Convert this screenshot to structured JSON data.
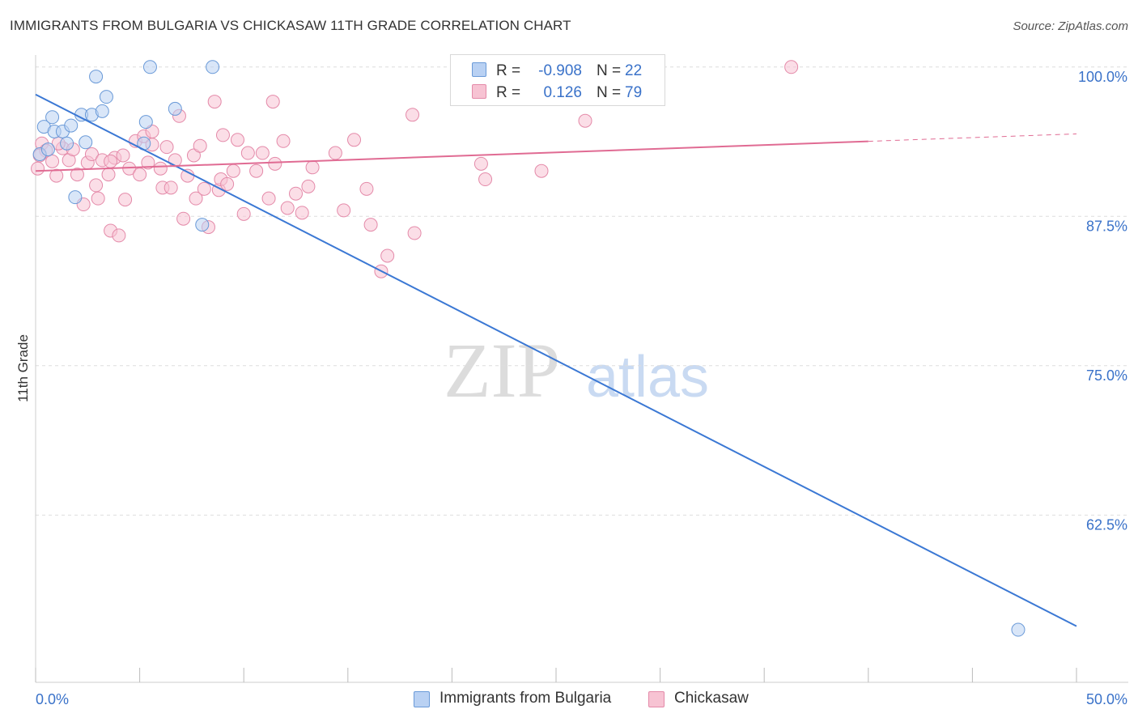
{
  "title": "IMMIGRANTS FROM BULGARIA VS CHICKASAW 11TH GRADE CORRELATION CHART",
  "source": "Source: ZipAtlas.com",
  "watermark": {
    "zip": "ZIP",
    "atlas": "atlas"
  },
  "colors": {
    "blue_fill": "#b9d1f3",
    "blue_stroke": "#6a9ad8",
    "blue_line": "#3b78d4",
    "pink_fill": "#f7c3d3",
    "pink_stroke": "#e48aa9",
    "pink_line": "#e06b93",
    "tick_label": "#3a72c9",
    "grid": "#dddddd"
  },
  "legend": {
    "rows": [
      {
        "r_label": "R =",
        "r_value": "-0.908",
        "n_label": "N =",
        "n_value": "22"
      },
      {
        "r_label": "R =",
        "r_value": "0.126",
        "n_label": "N =",
        "n_value": "79"
      }
    ]
  },
  "bottom_legend": {
    "items": [
      {
        "label": "Immigrants from Bulgaria"
      },
      {
        "label": "Chickasaw"
      }
    ]
  },
  "chart_data": {
    "type": "scatter",
    "title": "IMMIGRANTS FROM BULGARIA VS CHICKASAW 11TH GRADE CORRELATION CHART",
    "xlabel": "",
    "ylabel": "11th Grade",
    "xlim": [
      0,
      50
    ],
    "ylim": [
      48.5,
      101
    ],
    "x_tick_labels": [
      "0.0%",
      "50.0%"
    ],
    "y_ticks": [
      62.5,
      75.0,
      87.5,
      100.0
    ],
    "y_tick_labels": [
      "62.5%",
      "75.0%",
      "87.5%",
      "100.0%"
    ],
    "grid": true,
    "legend_position": "top-center",
    "series": [
      {
        "name": "Immigrants from Bulgaria",
        "color": "#b9d1f3",
        "points": [
          [
            0.4,
            95.0
          ],
          [
            0.8,
            95.8
          ],
          [
            0.9,
            94.6
          ],
          [
            1.3,
            94.6
          ],
          [
            1.5,
            93.6
          ],
          [
            1.7,
            95.1
          ],
          [
            1.9,
            89.1
          ],
          [
            2.2,
            96.0
          ],
          [
            2.4,
            93.7
          ],
          [
            2.7,
            96.0
          ],
          [
            2.9,
            99.2
          ],
          [
            3.2,
            96.3
          ],
          [
            3.4,
            97.5
          ],
          [
            5.3,
            95.4
          ],
          [
            5.2,
            93.6
          ],
          [
            5.5,
            100.0
          ],
          [
            6.7,
            96.5
          ],
          [
            8.0,
            86.8
          ],
          [
            8.5,
            100.0
          ],
          [
            47.2,
            52.9
          ],
          [
            0.2,
            92.7
          ],
          [
            0.6,
            93.1
          ]
        ],
        "trend": {
          "x": [
            0,
            50
          ],
          "y": [
            97.7,
            53.2
          ]
        }
      },
      {
        "name": "Chickasaw",
        "color": "#f7c3d3",
        "points": [
          [
            0.1,
            91.5
          ],
          [
            0.3,
            93.6
          ],
          [
            0.5,
            93.0
          ],
          [
            0.8,
            92.1
          ],
          [
            1.0,
            90.9
          ],
          [
            1.3,
            93.2
          ],
          [
            1.6,
            92.2
          ],
          [
            1.8,
            93.1
          ],
          [
            2.0,
            91.0
          ],
          [
            2.3,
            88.5
          ],
          [
            2.5,
            92.0
          ],
          [
            2.7,
            92.7
          ],
          [
            2.9,
            90.1
          ],
          [
            3.0,
            89.0
          ],
          [
            3.2,
            92.2
          ],
          [
            3.5,
            91.0
          ],
          [
            3.6,
            86.3
          ],
          [
            3.8,
            92.4
          ],
          [
            4.0,
            85.9
          ],
          [
            4.2,
            92.6
          ],
          [
            4.3,
            88.9
          ],
          [
            4.5,
            91.5
          ],
          [
            4.8,
            93.8
          ],
          [
            5.0,
            91.0
          ],
          [
            5.2,
            94.2
          ],
          [
            5.4,
            92.0
          ],
          [
            5.6,
            94.6
          ],
          [
            6.0,
            91.5
          ],
          [
            6.1,
            89.9
          ],
          [
            6.3,
            93.3
          ],
          [
            6.5,
            89.9
          ],
          [
            6.7,
            92.2
          ],
          [
            6.9,
            95.9
          ],
          [
            7.1,
            87.3
          ],
          [
            7.3,
            90.9
          ],
          [
            7.6,
            92.6
          ],
          [
            7.7,
            89.0
          ],
          [
            7.9,
            93.4
          ],
          [
            8.1,
            89.8
          ],
          [
            8.3,
            86.6
          ],
          [
            8.6,
            97.1
          ],
          [
            8.8,
            89.7
          ],
          [
            8.9,
            90.6
          ],
          [
            9.2,
            90.2
          ],
          [
            9.5,
            91.3
          ],
          [
            9.7,
            93.9
          ],
          [
            10.0,
            87.7
          ],
          [
            10.2,
            92.8
          ],
          [
            10.6,
            91.3
          ],
          [
            10.9,
            92.8
          ],
          [
            11.2,
            89.0
          ],
          [
            11.4,
            97.1
          ],
          [
            11.5,
            91.9
          ],
          [
            11.9,
            93.8
          ],
          [
            12.1,
            88.2
          ],
          [
            12.8,
            87.8
          ],
          [
            13.1,
            90.0
          ],
          [
            13.3,
            91.6
          ],
          [
            14.4,
            92.8
          ],
          [
            15.3,
            93.9
          ],
          [
            15.9,
            89.8
          ],
          [
            16.1,
            86.8
          ],
          [
            16.9,
            84.2
          ],
          [
            16.6,
            82.9
          ],
          [
            18.1,
            96.0
          ],
          [
            18.2,
            86.1
          ],
          [
            21.4,
            91.9
          ],
          [
            21.6,
            90.6
          ],
          [
            21.8,
            98.2
          ],
          [
            24.3,
            91.3
          ],
          [
            26.4,
            95.5
          ],
          [
            36.3,
            100.0
          ],
          [
            0.2,
            92.6
          ],
          [
            1.1,
            93.6
          ],
          [
            3.6,
            92.1
          ],
          [
            5.6,
            93.5
          ],
          [
            9.0,
            94.3
          ],
          [
            12.5,
            89.4
          ],
          [
            14.8,
            88.0
          ]
        ],
        "trend": {
          "x": [
            0,
            50
          ],
          "y": [
            91.3,
            94.4
          ]
        },
        "trend_solid_until_x": 40
      }
    ]
  }
}
